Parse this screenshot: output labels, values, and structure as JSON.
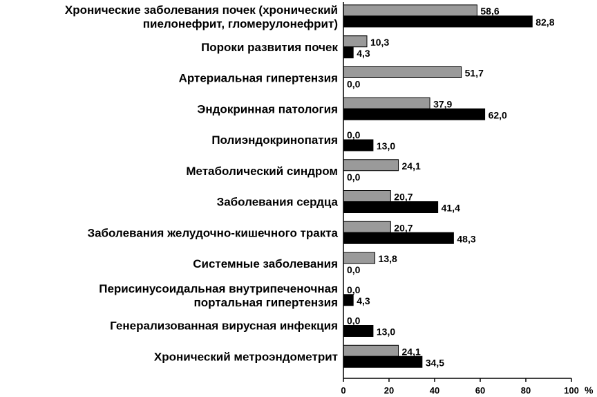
{
  "chart_data": {
    "type": "bar",
    "orientation": "horizontal",
    "categories": [
      [
        "Хронические заболевания почек (хронический",
        "пиелонефрит, гломерулонефрит)"
      ],
      [
        "Пороки развития почек"
      ],
      [
        "Артериальная гипертензия"
      ],
      [
        "Эндокринная патология"
      ],
      [
        "Полиэндокринопатия"
      ],
      [
        "Метаболический синдром"
      ],
      [
        "Заболевания сердца"
      ],
      [
        "Заболевания желудочно-кишечного тракта"
      ],
      [
        "Системные заболевания"
      ],
      [
        "Перисинусоидальная внутрипеченочная",
        "портальная гипертензия"
      ],
      [
        "Генерализованная вирусная инфекция"
      ],
      [
        "Хронический метроэндометрит"
      ]
    ],
    "series": [
      {
        "color": "#9a9a9a",
        "values": [
          58.6,
          10.3,
          51.7,
          37.9,
          0.0,
          24.1,
          20.7,
          20.7,
          13.8,
          0.0,
          0.0,
          24.1
        ],
        "labels": [
          "58,6",
          "10,3",
          "51,7",
          "37,9",
          "0,0",
          "24,1",
          "20,7",
          "20,7",
          "13,8",
          "0,0",
          "0,0",
          "24,1"
        ]
      },
      {
        "color": "#000000",
        "values": [
          82.8,
          4.3,
          0.0,
          62.0,
          13.0,
          0.0,
          41.4,
          48.3,
          0.0,
          4.3,
          13.0,
          34.5
        ],
        "labels": [
          "82,8",
          "4,3",
          "0,0",
          "62,0",
          "13,0",
          "0,0",
          "41,4",
          "48,3",
          "0,0",
          "4,3",
          "13,0",
          "34,5"
        ]
      }
    ],
    "xlim": [
      0,
      100
    ],
    "xticks": [
      "0",
      "20",
      "40",
      "60",
      "80",
      "100"
    ],
    "xunit": "%",
    "grid": false,
    "legend": "none"
  }
}
